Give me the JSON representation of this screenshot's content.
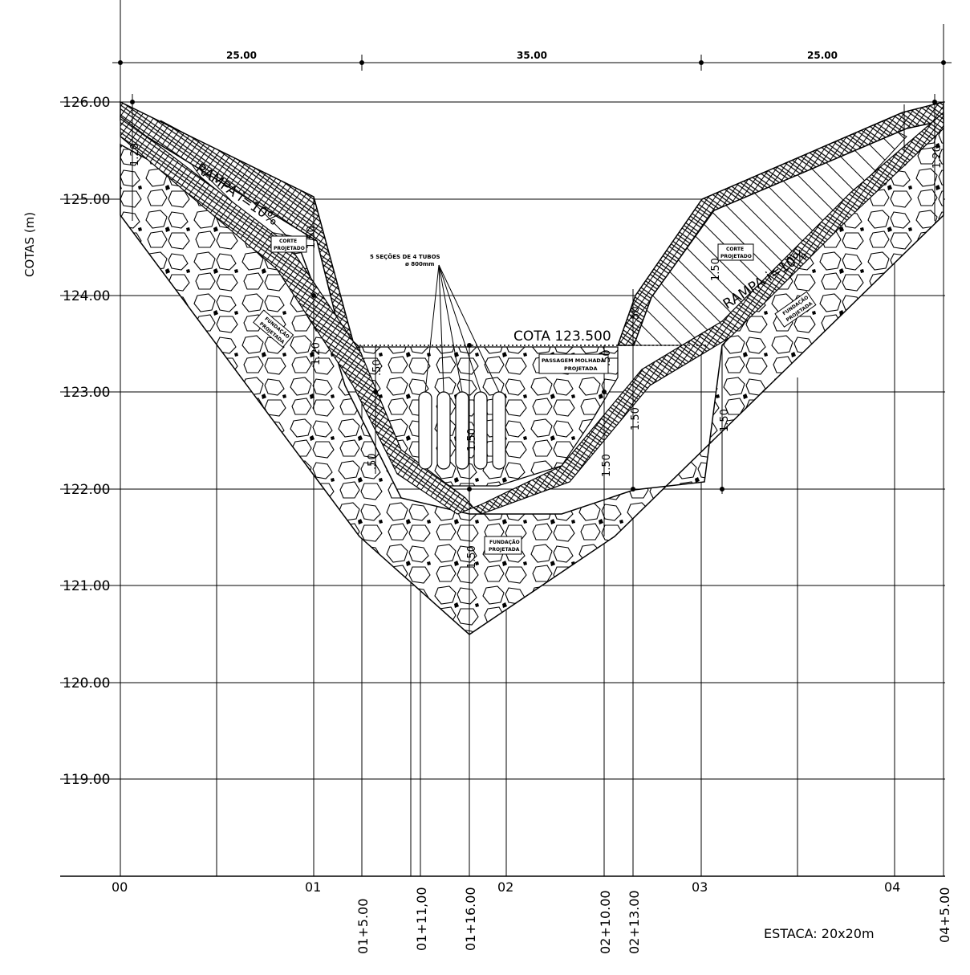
{
  "drawing": {
    "axis_title": "COTAS (m)",
    "elevation_labels": [
      "126.00",
      "125.00",
      "124.00",
      "123.00",
      "122.00",
      "121.00",
      "120.00",
      "119.00"
    ],
    "dimension_labels": [
      "25.00",
      "35.00",
      "25.00"
    ],
    "station_labels_horizontal": [
      "00",
      "01",
      "02",
      "03",
      "04"
    ],
    "station_labels_vertical": [
      "01+5.00",
      "01+11,00",
      "01+16.00",
      "02+10.00",
      "02+13.00",
      "04+5.00"
    ],
    "scale_note": "ESTACA: 20x20m",
    "cota_label": "COTA 123.500",
    "rampa_left": "RAMPA i=10%",
    "rampa_right": "RAMPA i=10%",
    "tubes_note_line1": "5 SEÇÕES DE 4 TUBOS",
    "tubes_note_line2": "ø 800mm",
    "boxes": {
      "corte_left": [
        "CORTE",
        "PROJETADO"
      ],
      "corte_right": [
        "CORTE",
        "PROJETADO"
      ],
      "fundacao_left": [
        "FUNDAÇÃO",
        "PROJETADA"
      ],
      "fundacao_right": [
        "FUNDAÇÃO",
        "PROJETADA"
      ],
      "fundacao_center": [
        "FUNDAÇÃO",
        "PROJETADA"
      ],
      "passagem": [
        "PASSAGEM MOLHADA",
        "PROJETADA"
      ]
    },
    "thickness_labels": {
      "t_120_left": "1.20",
      "t_120_right": "1.20",
      "t_120_mid": "1.20",
      "t_50_a": ".50",
      "t_50_b": ".50",
      "t_50_c": ".50",
      "t_50_d": ".50",
      "t_150_a": "1.50",
      "t_150_b": "1.50",
      "t_150_c": "1.50",
      "t_150_d": "1.50",
      "t_150_e": "1.50",
      "t_150_f": "1.50",
      "t_150_g": "1.50"
    }
  }
}
